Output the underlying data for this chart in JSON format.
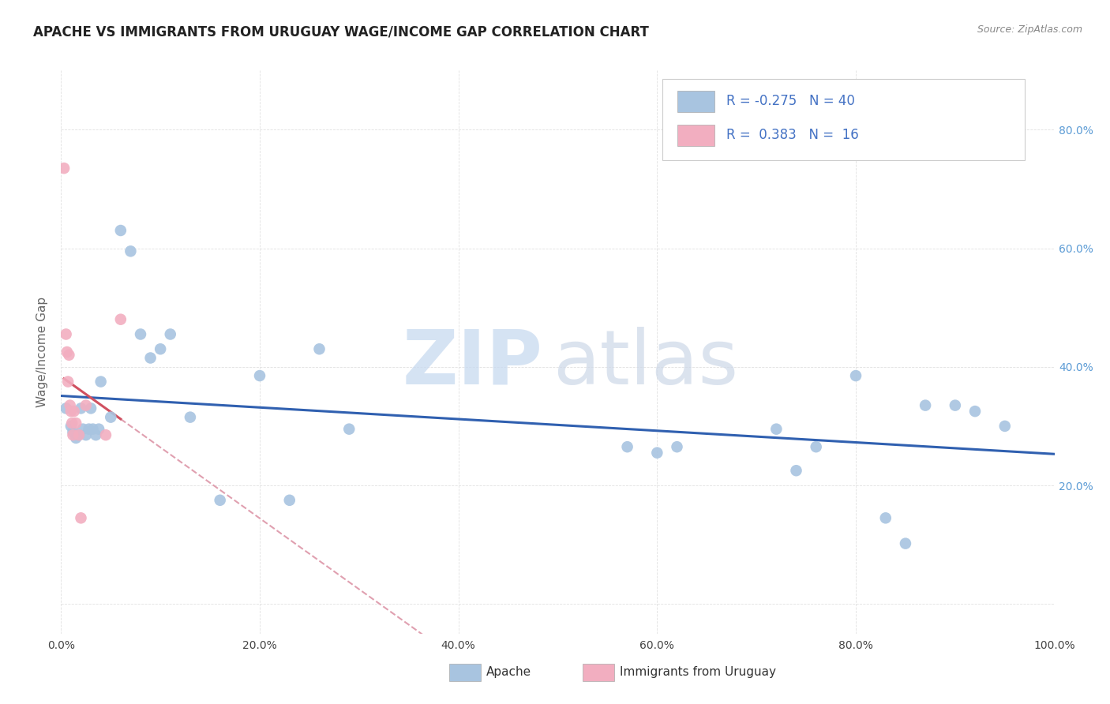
{
  "title": "APACHE VS IMMIGRANTS FROM URUGUAY WAGE/INCOME GAP CORRELATION CHART",
  "source": "Source: ZipAtlas.com",
  "ylabel": "Wage/Income Gap",
  "r_apache": -0.275,
  "n_apache": 40,
  "r_uruguay": 0.383,
  "n_uruguay": 16,
  "apache_color": "#a8c4e0",
  "uruguay_color": "#f2aec0",
  "apache_line_color": "#3060b0",
  "uruguay_line_color": "#d05060",
  "trend_dashed_color": "#e0a0b0",
  "xlim": [
    0.0,
    1.0
  ],
  "ylim": [
    -0.05,
    0.9
  ],
  "xtick_vals": [
    0.0,
    0.2,
    0.4,
    0.6,
    0.8,
    1.0
  ],
  "xticklabels": [
    "0.0%",
    "20.0%",
    "40.0%",
    "60.0%",
    "80.0%",
    "100.0%"
  ],
  "ytick_vals": [
    0.0,
    0.2,
    0.4,
    0.6,
    0.8
  ],
  "right_yticklabels": [
    "",
    "20.0%",
    "40.0%",
    "60.0%",
    "80.0%"
  ],
  "apache_x": [
    0.005,
    0.01,
    0.012,
    0.015,
    0.018,
    0.02,
    0.022,
    0.025,
    0.028,
    0.03,
    0.032,
    0.035,
    0.038,
    0.04,
    0.05,
    0.06,
    0.07,
    0.08,
    0.09,
    0.1,
    0.11,
    0.13,
    0.16,
    0.2,
    0.23,
    0.26,
    0.29,
    0.57,
    0.6,
    0.62,
    0.72,
    0.74,
    0.76,
    0.8,
    0.83,
    0.85,
    0.87,
    0.9,
    0.92,
    0.95
  ],
  "apache_y": [
    0.33,
    0.3,
    0.29,
    0.28,
    0.285,
    0.33,
    0.295,
    0.285,
    0.295,
    0.33,
    0.295,
    0.285,
    0.295,
    0.375,
    0.315,
    0.63,
    0.595,
    0.455,
    0.415,
    0.43,
    0.455,
    0.315,
    0.175,
    0.385,
    0.175,
    0.43,
    0.295,
    0.265,
    0.255,
    0.265,
    0.295,
    0.225,
    0.265,
    0.385,
    0.145,
    0.102,
    0.335,
    0.335,
    0.325,
    0.3
  ],
  "uruguay_x": [
    0.003,
    0.005,
    0.006,
    0.007,
    0.008,
    0.009,
    0.01,
    0.011,
    0.012,
    0.013,
    0.015,
    0.018,
    0.02,
    0.025,
    0.045,
    0.06
  ],
  "uruguay_y": [
    0.735,
    0.455,
    0.425,
    0.375,
    0.42,
    0.335,
    0.325,
    0.305,
    0.285,
    0.325,
    0.305,
    0.285,
    0.145,
    0.335,
    0.285,
    0.48
  ],
  "background_color": "#ffffff",
  "grid_color": "#e0e0e0",
  "legend_bottom_labels": [
    "Apache",
    "Immigrants from Uruguay"
  ]
}
